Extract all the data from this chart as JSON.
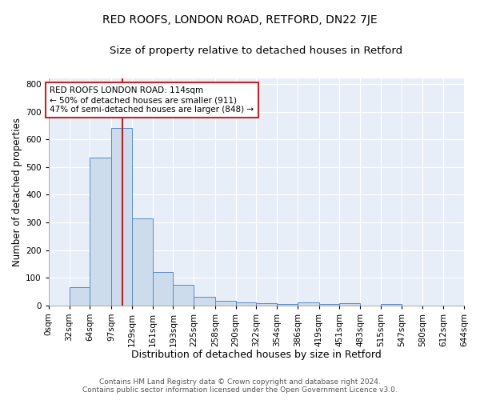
{
  "title": "RED ROOFS, LONDON ROAD, RETFORD, DN22 7JE",
  "subtitle": "Size of property relative to detached houses in Retford",
  "xlabel": "Distribution of detached houses by size in Retford",
  "ylabel": "Number of detached properties",
  "bin_edges": [
    0,
    32,
    64,
    97,
    129,
    161,
    193,
    225,
    258,
    290,
    322,
    354,
    386,
    419,
    451,
    483,
    515,
    547,
    580,
    612,
    644
  ],
  "bin_labels": [
    "0sqm",
    "32sqm",
    "64sqm",
    "97sqm",
    "129sqm",
    "161sqm",
    "193sqm",
    "225sqm",
    "258sqm",
    "290sqm",
    "322sqm",
    "354sqm",
    "386sqm",
    "419sqm",
    "451sqm",
    "483sqm",
    "515sqm",
    "547sqm",
    "580sqm",
    "612sqm",
    "644sqm"
  ],
  "bar_heights": [
    0,
    65,
    535,
    640,
    315,
    120,
    75,
    30,
    17,
    12,
    8,
    5,
    10,
    5,
    7,
    0,
    5,
    0,
    0,
    0
  ],
  "bar_color": "#ccdcec",
  "bar_edge_color": "#5b8ac7",
  "red_line_x": 114,
  "annotation_text": "RED ROOFS LONDON ROAD: 114sqm\n← 50% of detached houses are smaller (911)\n47% of semi-detached houses are larger (848) →",
  "annotation_box_color": "#ffffff",
  "annotation_box_edge_color": "#cc2222",
  "ylim": [
    0,
    820
  ],
  "yticks": [
    0,
    100,
    200,
    300,
    400,
    500,
    600,
    700,
    800
  ],
  "fig_bg_color": "#ffffff",
  "plot_bg_color": "#e8eef8",
  "grid_color": "#ffffff",
  "footer_line1": "Contains HM Land Registry data © Crown copyright and database right 2024.",
  "footer_line2": "Contains public sector information licensed under the Open Government Licence v3.0.",
  "title_fontsize": 10,
  "subtitle_fontsize": 9.5,
  "xlabel_fontsize": 9,
  "ylabel_fontsize": 8.5,
  "tick_fontsize": 7.5,
  "annotation_fontsize": 7.5,
  "footer_fontsize": 6.5
}
